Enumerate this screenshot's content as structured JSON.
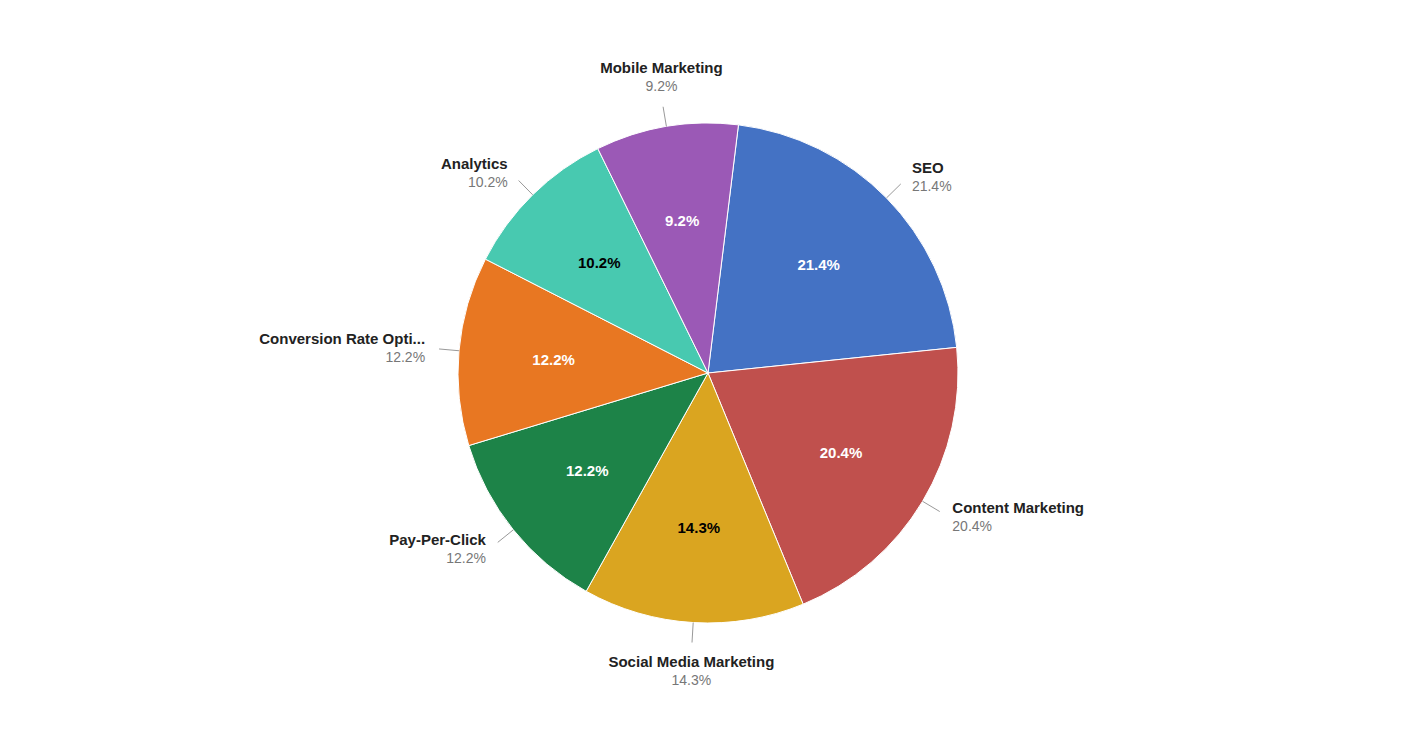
{
  "chart_data": {
    "type": "pie",
    "categories": [
      "SEO",
      "Content Marketing",
      "Social Media Marketing",
      "Pay-Per-Click",
      "Conversion Rate Opti...",
      "Analytics",
      "Mobile Marketing"
    ],
    "values": [
      21.4,
      20.4,
      14.3,
      12.2,
      12.2,
      10.2,
      9.2
    ],
    "value_labels": [
      "21.4%",
      "20.4%",
      "14.3%",
      "12.2%",
      "12.2%",
      "10.2%",
      "9.2%"
    ],
    "colors": [
      "#4472C4",
      "#C0504D",
      "#DAA520",
      "#1D8348",
      "#E87722",
      "#48C9B0",
      "#9B59B6"
    ],
    "data_labels": true
  }
}
